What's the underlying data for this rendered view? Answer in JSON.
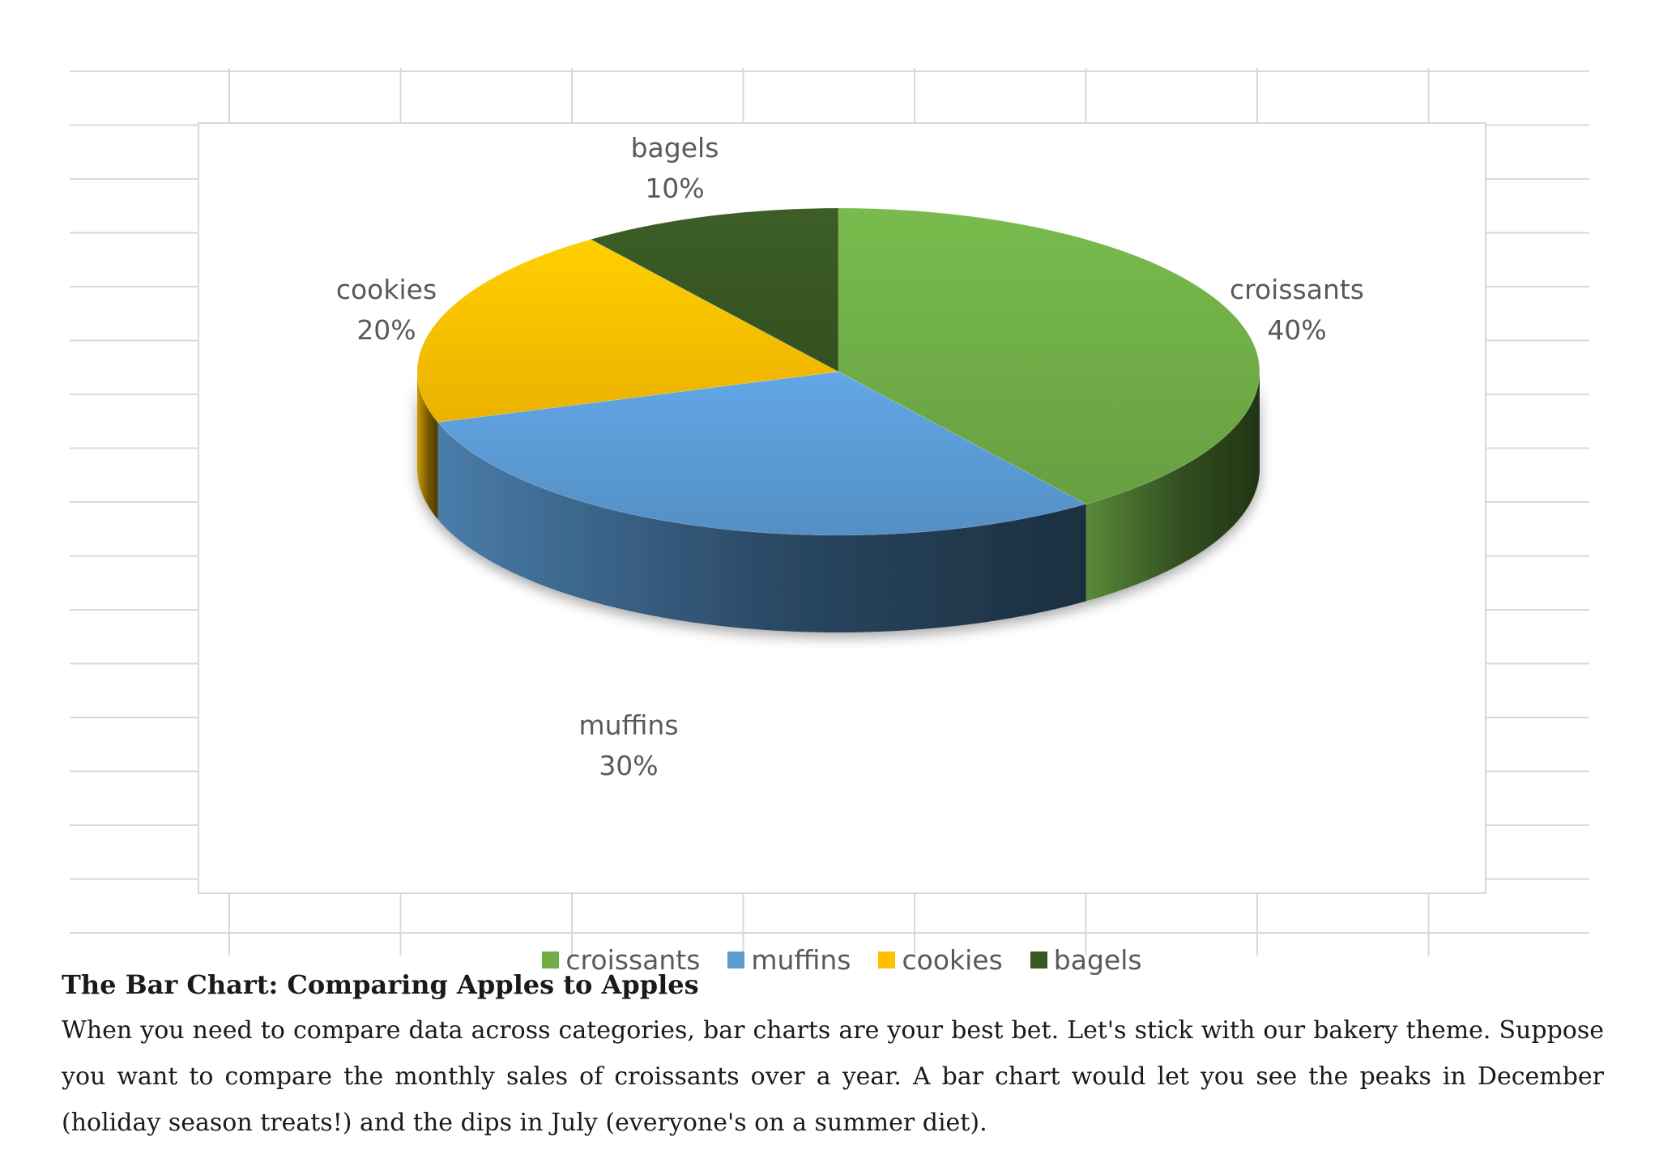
{
  "chart_data": {
    "type": "pie",
    "title": "",
    "categories": [
      "croissants",
      "muffins",
      "cookies",
      "bagels"
    ],
    "values": [
      40,
      30,
      20,
      10
    ],
    "data_labels": [
      {
        "name": "croissants",
        "value": "40%"
      },
      {
        "name": "muffins",
        "value": "30%"
      },
      {
        "name": "cookies",
        "value": "20%"
      },
      {
        "name": "bagels",
        "value": "10%"
      }
    ],
    "colors": [
      "#70ad47",
      "#5b9bd5",
      "#ffc000",
      "#385723"
    ],
    "legend": {
      "placement": "bottom",
      "items": [
        "croissants",
        "muffins",
        "cookies",
        "bagels"
      ]
    },
    "style": "3d"
  },
  "article": {
    "heading": "The Bar Chart: Comparing Apples to Apples",
    "paragraph": "When you need to compare data across categories, bar charts are your best bet. Let's stick with our bakery theme. Suppose you want to compare the monthly sales of croissants over a year. A bar chart would let you see the peaks in December (holiday season treats!) and the dips in July (everyone's on a summer diet)."
  }
}
